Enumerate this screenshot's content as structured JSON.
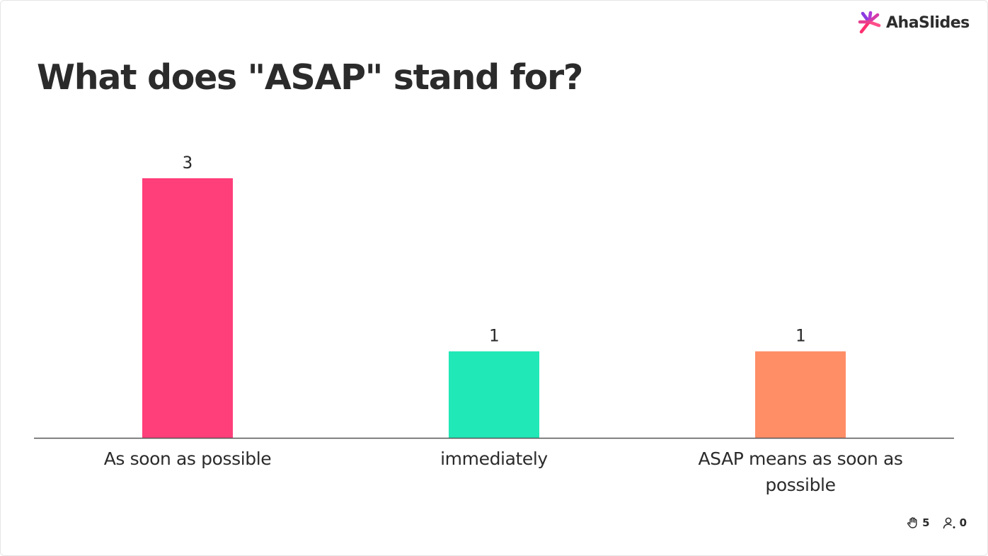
{
  "brand": {
    "name": "AhaSlides"
  },
  "question": {
    "title": "What does \"ASAP\" stand for?"
  },
  "chart_data": {
    "type": "bar",
    "categories": [
      "As soon as possible",
      "immediately",
      "ASAP means as soon as possible"
    ],
    "values": [
      3,
      1,
      1
    ],
    "value_labels": [
      "3",
      "1",
      "1"
    ],
    "colors": [
      "#ff3f7a",
      "#20e8b6",
      "#ff8e66"
    ],
    "ylim": [
      0,
      3
    ],
    "grid": false,
    "axis_color": "#555555"
  },
  "footer": {
    "reactions_icon": "hand-icon",
    "reactions_count": "5",
    "audience_icon": "person-icon",
    "audience_count": "0"
  }
}
